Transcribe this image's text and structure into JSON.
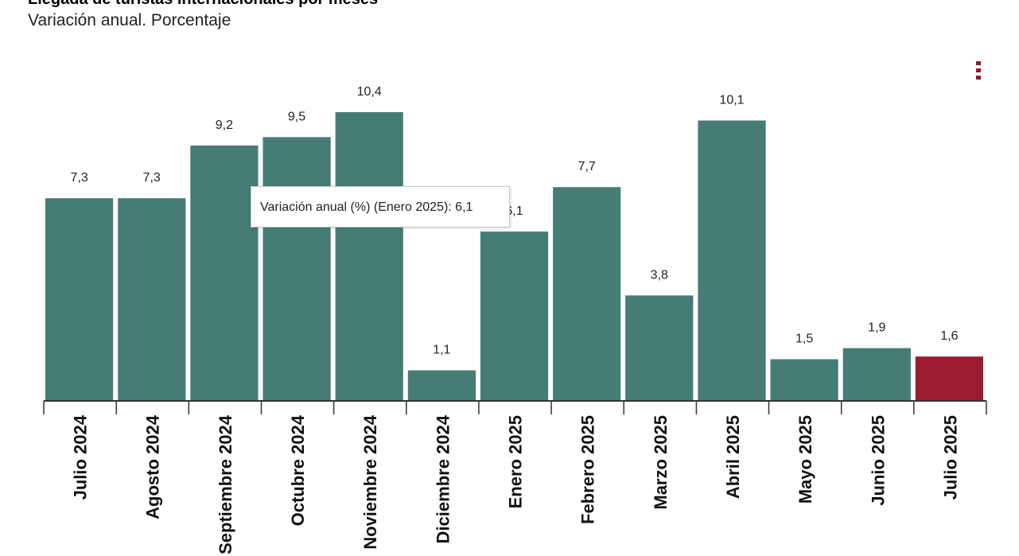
{
  "header": {
    "title": "Llegada de turistas internacionales por meses",
    "subtitle": "Variación anual. Porcentaje"
  },
  "menu": {
    "icon": "vertical-dots-icon",
    "color": "#8c1c2c"
  },
  "tooltip": {
    "text": "Variación anual (%) (Enero 2025): 6,1"
  },
  "colors": {
    "bar": "#457d74",
    "highlight": "#9b1b30"
  },
  "chart_data": {
    "type": "bar",
    "categories": [
      "Julio 2024",
      "Agosto 2024",
      "Septiembre 2024",
      "Octubre 2024",
      "Noviembre 2024",
      "Diciembre 2024",
      "Enero 2025",
      "Febrero 2025",
      "Marzo 2025",
      "Abril 2025",
      "Mayo 2025",
      "Junio 2025",
      "Julio 2025"
    ],
    "values": [
      7.3,
      7.3,
      9.2,
      9.5,
      10.4,
      1.1,
      6.1,
      7.7,
      3.8,
      10.1,
      1.5,
      1.9,
      1.6
    ],
    "value_labels": [
      "7,3",
      "7,3",
      "9,2",
      "9,5",
      "10,4",
      "1,1",
      "6,1",
      "7,7",
      "3,8",
      "10,1",
      "1,5",
      "1,9",
      "1,6"
    ],
    "highlighted_index": 12,
    "ylim": [
      0,
      10.4
    ],
    "grid": false,
    "legend": "none"
  }
}
